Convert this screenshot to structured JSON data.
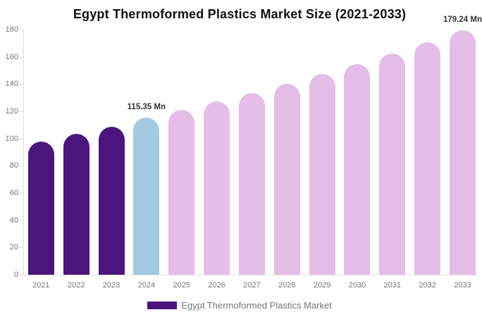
{
  "chart_data": {
    "type": "bar",
    "title": "Egypt Thermoformed Plastics Market Size (2021-2033)",
    "unit": "Mn",
    "categories": [
      "2021",
      "2022",
      "2023",
      "2024",
      "2025",
      "2026",
      "2027",
      "2028",
      "2029",
      "2030",
      "2031",
      "2032",
      "2033"
    ],
    "series": [
      {
        "name": "Egypt Thermoformed Plastics Market",
        "values": [
          98.0,
          103.2,
          108.6,
          115.35,
          121.1,
          127.2,
          133.6,
          140.3,
          147.3,
          154.7,
          162.4,
          170.6,
          179.24
        ]
      }
    ],
    "segments": [
      "historical",
      "historical",
      "historical",
      "current",
      "forecast",
      "forecast",
      "forecast",
      "forecast",
      "forecast",
      "forecast",
      "forecast",
      "forecast",
      "forecast"
    ],
    "colors": {
      "historical": "#4c157e",
      "current": "#a2cbe2",
      "forecast": "#e4bde8"
    },
    "ylim": [
      0,
      180
    ],
    "yticks": [
      0,
      20,
      40,
      60,
      80,
      100,
      120,
      140,
      160,
      180
    ],
    "grid": false,
    "legend_position": "bottom",
    "annotations": [
      {
        "category": "2024",
        "text": "115.35 Mn"
      },
      {
        "category": "2033",
        "text": "179.24 Mn"
      }
    ]
  },
  "legend": {
    "label": "Egypt Thermoformed Plastics Market"
  }
}
